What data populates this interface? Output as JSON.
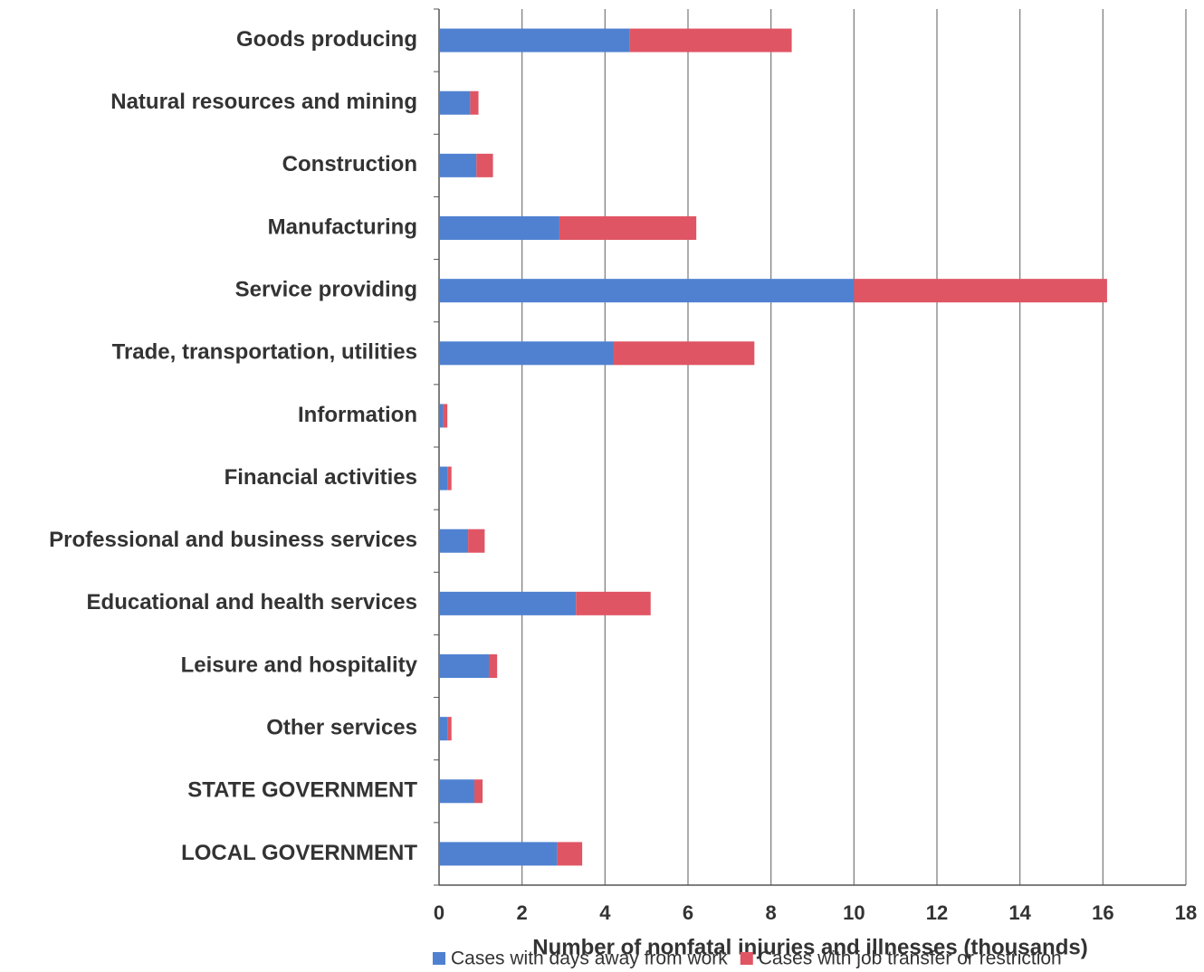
{
  "chart_data": {
    "type": "stacked-bar-horizontal",
    "x_label": "Number of nonfatal injuries and illnesses (thousands)",
    "categories": [
      "Goods producing",
      "Natural resources and mining",
      "Construction",
      "Manufacturing",
      "Service providing",
      "Trade, transportation, utilities",
      "Information",
      "Financial activities",
      "Professional and business services",
      "Educational and health services",
      "Leisure and hospitality",
      "Other services",
      "STATE GOVERNMENT",
      "LOCAL GOVERNMENT"
    ],
    "series": [
      {
        "name": "Cases with days away from work",
        "color": "#4f81d0",
        "values": [
          4.6,
          0.75,
          0.9,
          2.9,
          10.0,
          4.2,
          0.1,
          0.2,
          0.7,
          3.3,
          1.2,
          0.2,
          0.85,
          2.85
        ]
      },
      {
        "name": "Cases with job transfer or restriction",
        "color": "#e05564",
        "values": [
          3.9,
          0.2,
          0.4,
          3.3,
          6.1,
          3.4,
          0.1,
          0.1,
          0.4,
          1.8,
          0.2,
          0.1,
          0.2,
          0.6
        ]
      }
    ],
    "xlim": [
      0,
      18
    ],
    "xticks": [
      0,
      2,
      4,
      6,
      8,
      10,
      12,
      14,
      16,
      18
    ],
    "grid": true,
    "legend": "bottom"
  }
}
